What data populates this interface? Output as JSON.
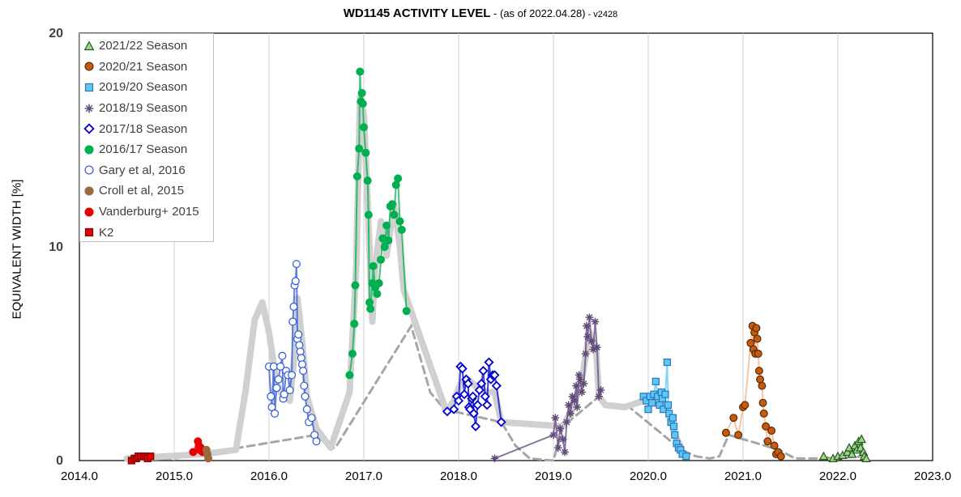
{
  "title": {
    "main": "WD1145 ACTIVITY LEVEL",
    "sub": " - (as of 2022.04.28)",
    "version": " - v2428"
  },
  "chart_data": {
    "type": "scatter",
    "ylabel": "EQUIVALENT WIDTH [%]",
    "xlabel": "",
    "xlim": [
      2014.0,
      2023.0
    ],
    "ylim": [
      0,
      20
    ],
    "xticks": [
      "2014.0",
      "2015.0",
      "2016.0",
      "2017.0",
      "2018.0",
      "2019.0",
      "2020.0",
      "2021.0",
      "2022.0",
      "2023.0"
    ],
    "yticks": [
      "0",
      "10",
      "20"
    ],
    "grid": "vertical",
    "legend_position": "top-left",
    "trend": {
      "solid": [
        [
          2014.5,
          0.1
        ],
        [
          2015.3,
          0.3
        ],
        [
          2015.65,
          0.5
        ],
        [
          2015.75,
          3.2
        ],
        [
          2015.85,
          6.6
        ],
        [
          2015.93,
          7.4
        ],
        [
          2016.0,
          6.0
        ],
        [
          2016.08,
          3.6
        ],
        [
          2016.15,
          3.0
        ],
        [
          2016.22,
          2.8
        ],
        [
          2016.27,
          5.0
        ],
        [
          2016.3,
          7.6
        ],
        [
          2016.35,
          5.6
        ],
        [
          2016.4,
          3.0
        ],
        [
          2016.5,
          1.5
        ],
        [
          2016.65,
          0.6
        ],
        [
          2016.85,
          3.2
        ],
        [
          2016.92,
          9.0
        ],
        [
          2016.96,
          17.0
        ],
        [
          2017.0,
          16.2
        ],
        [
          2017.06,
          10.0
        ],
        [
          2017.09,
          6.5
        ],
        [
          2017.12,
          9.0
        ],
        [
          2017.18,
          11.2
        ],
        [
          2017.24,
          9.6
        ],
        [
          2017.32,
          12.0
        ],
        [
          2017.38,
          10.0
        ],
        [
          2017.42,
          8.0
        ],
        [
          2017.87,
          2.3
        ],
        [
          2017.95,
          2.8
        ],
        [
          2018.02,
          3.6
        ],
        [
          2018.1,
          3.8
        ],
        [
          2018.2,
          3.4
        ],
        [
          2018.3,
          3.2
        ],
        [
          2018.38,
          3.2
        ],
        [
          2018.45,
          1.8
        ],
        [
          2019.1,
          1.6
        ],
        [
          2019.2,
          2.4
        ],
        [
          2019.3,
          3.8
        ],
        [
          2019.38,
          6.0
        ],
        [
          2019.45,
          5.2
        ],
        [
          2019.48,
          3.0
        ],
        [
          2019.55,
          2.6
        ],
        [
          2019.75,
          2.5
        ],
        [
          2019.95,
          2.8
        ],
        [
          2020.1,
          2.8
        ],
        [
          2020.2,
          2.5
        ],
        [
          2020.28,
          1.2
        ],
        [
          2020.35,
          0.6
        ]
      ],
      "dashed": [
        [
          2014.5,
          0.0
        ],
        [
          2015.0,
          0.1
        ],
        [
          2016.5,
          1.2
        ],
        [
          2016.65,
          0.6
        ],
        [
          2016.7,
          0.6
        ],
        [
          2017.5,
          6.3
        ],
        [
          2017.7,
          3.2
        ],
        [
          2017.85,
          2.4
        ],
        [
          2018.45,
          1.8
        ],
        [
          2018.6,
          0.7
        ],
        [
          2018.75,
          0.1
        ],
        [
          2019.0,
          0.0
        ],
        [
          2019.1,
          1.6
        ],
        [
          2019.48,
          3.0
        ],
        [
          2019.55,
          2.6
        ],
        [
          2019.8,
          2.5
        ],
        [
          2020.35,
          0.5
        ],
        [
          2020.5,
          0.2
        ],
        [
          2020.65,
          0.1
        ],
        [
          2020.75,
          0.2
        ],
        [
          2020.85,
          1.2
        ],
        [
          2021.38,
          0.5
        ],
        [
          2021.55,
          0.1
        ],
        [
          2021.85,
          0.1
        ],
        [
          2022.3,
          0.2
        ]
      ]
    },
    "series": [
      {
        "name": "2021/22 Season",
        "marker": "triangle",
        "color": "#a9d18e",
        "stroke": "#1f5c1f",
        "line_color": "#70ad47",
        "x": [
          2021.85,
          2021.95,
          2022.0,
          2022.05,
          2022.1,
          2022.12,
          2022.15,
          2022.18,
          2022.2,
          2022.22,
          2022.24,
          2022.25,
          2022.27,
          2022.28,
          2022.3
        ],
        "y": [
          0.2,
          0.1,
          0.2,
          0.25,
          0.4,
          0.6,
          0.3,
          0.7,
          0.5,
          0.9,
          0.6,
          1.0,
          0.4,
          0.2,
          0.1
        ]
      },
      {
        "name": "2020/21 Season",
        "marker": "circle",
        "color": "#c55a11",
        "stroke": "#5a2a00",
        "line_color": "#f4b183",
        "x": [
          2020.82,
          2020.9,
          2020.95,
          2021.0,
          2021.02,
          2021.08,
          2021.1,
          2021.11,
          2021.12,
          2021.13,
          2021.14,
          2021.15,
          2021.16,
          2021.17,
          2021.18,
          2021.2,
          2021.21,
          2021.22,
          2021.24,
          2021.26,
          2021.3,
          2021.33,
          2021.35,
          2021.37,
          2021.4
        ],
        "y": [
          1.3,
          2.0,
          1.2,
          2.5,
          2.6,
          5.5,
          6.3,
          5.2,
          6.0,
          5.0,
          6.2,
          5.7,
          5.0,
          4.2,
          3.8,
          3.5,
          2.7,
          2.2,
          1.6,
          0.9,
          1.4,
          0.7,
          0.3,
          0.4,
          0.2
        ]
      },
      {
        "name": "2019/20 Season",
        "marker": "square",
        "color": "#5ac8fa",
        "stroke": "#2e75b6",
        "line_color": "#5ac8fa",
        "x": [
          2019.95,
          2019.98,
          2020.0,
          2020.02,
          2020.04,
          2020.06,
          2020.08,
          2020.1,
          2020.12,
          2020.14,
          2020.15,
          2020.16,
          2020.18,
          2020.2,
          2020.21,
          2020.22,
          2020.24,
          2020.26,
          2020.27,
          2020.28,
          2020.3,
          2020.32,
          2020.34,
          2020.36,
          2020.4
        ],
        "y": [
          3.0,
          2.8,
          2.4,
          3.0,
          2.7,
          3.1,
          3.7,
          3.0,
          2.6,
          3.2,
          2.9,
          2.4,
          3.1,
          4.6,
          2.6,
          2.2,
          1.8,
          2.0,
          1.6,
          1.2,
          0.8,
          0.6,
          0.5,
          0.3,
          0.2
        ]
      },
      {
        "name": "2018/19 Season",
        "marker": "star",
        "color": "#604a7b",
        "stroke": "#604a7b",
        "line_color": "#604a7b",
        "x": [
          2018.38,
          2019.0,
          2019.02,
          2019.05,
          2019.07,
          2019.1,
          2019.12,
          2019.14,
          2019.16,
          2019.18,
          2019.2,
          2019.22,
          2019.24,
          2019.25,
          2019.27,
          2019.28,
          2019.3,
          2019.32,
          2019.34,
          2019.35,
          2019.36,
          2019.38,
          2019.4,
          2019.42,
          2019.44,
          2019.46,
          2019.48,
          2019.5
        ],
        "y": [
          0.1,
          1.2,
          2.0,
          0.6,
          1.5,
          1.0,
          0.4,
          1.8,
          2.6,
          2.2,
          3.0,
          2.8,
          3.5,
          2.5,
          4.0,
          3.8,
          3.2,
          3.6,
          5.0,
          6.3,
          5.8,
          6.7,
          5.6,
          5.2,
          6.5,
          5.3,
          3.0,
          3.3
        ]
      },
      {
        "name": "2017/18 Season",
        "marker": "diamond",
        "color": "#ffffff",
        "stroke": "#0000cc",
        "line_color": "#0000cc",
        "x": [
          2017.88,
          2017.95,
          2017.98,
          2018.0,
          2018.02,
          2018.04,
          2018.06,
          2018.08,
          2018.1,
          2018.11,
          2018.12,
          2018.14,
          2018.15,
          2018.16,
          2018.18,
          2018.2,
          2018.22,
          2018.24,
          2018.26,
          2018.28,
          2018.3,
          2018.32,
          2018.34,
          2018.36,
          2018.38,
          2018.4,
          2018.45
        ],
        "y": [
          2.3,
          2.4,
          3.0,
          2.8,
          4.4,
          4.3,
          3.1,
          3.8,
          3.6,
          2.5,
          2.4,
          2.9,
          3.0,
          2.2,
          1.6,
          2.6,
          3.3,
          3.6,
          4.2,
          3.0,
          2.6,
          4.6,
          3.8,
          4.0,
          4.0,
          3.5,
          1.8
        ]
      },
      {
        "name": "2016/17 Season",
        "marker": "circle",
        "color": "#00b050",
        "stroke": "#00b050",
        "line_color": "#00b050",
        "x": [
          2016.85,
          2016.88,
          2016.9,
          2016.91,
          2016.93,
          2016.95,
          2016.96,
          2016.97,
          2016.98,
          2016.99,
          2017.0,
          2017.02,
          2017.04,
          2017.05,
          2017.06,
          2017.07,
          2017.09,
          2017.1,
          2017.12,
          2017.14,
          2017.16,
          2017.18,
          2017.2,
          2017.22,
          2017.24,
          2017.26,
          2017.28,
          2017.3,
          2017.32,
          2017.34,
          2017.36,
          2017.38,
          2017.4,
          2017.45
        ],
        "y": [
          4.0,
          5.0,
          6.4,
          8.2,
          13.3,
          14.6,
          18.2,
          16.8,
          17.2,
          16.7,
          15.6,
          14.4,
          13.1,
          11.5,
          7.4,
          7.1,
          8.3,
          9.1,
          8.1,
          7.8,
          8.3,
          9.4,
          10.4,
          10.0,
          11.0,
          10.3,
          11.9,
          12.0,
          11.5,
          12.9,
          13.2,
          11.2,
          10.8,
          7.0
        ]
      },
      {
        "name": "Gary et al, 2016",
        "marker": "circle",
        "color": "#ffffff",
        "stroke": "#2e58d9",
        "line_color": "#2e58d9",
        "x": [
          2016.0,
          2016.02,
          2016.03,
          2016.05,
          2016.06,
          2016.08,
          2016.1,
          2016.12,
          2016.14,
          2016.15,
          2016.16,
          2016.18,
          2016.2,
          2016.22,
          2016.24,
          2016.25,
          2016.26,
          2016.27,
          2016.28,
          2016.29,
          2016.3,
          2016.31,
          2016.32,
          2016.33,
          2016.34,
          2016.35,
          2016.36,
          2016.37,
          2016.38,
          2016.4,
          2016.42,
          2016.45,
          2016.48,
          2016.5
        ],
        "y": [
          4.4,
          3.0,
          2.5,
          4.4,
          2.2,
          3.4,
          3.8,
          4.4,
          4.9,
          2.9,
          3.1,
          4.2,
          4.0,
          3.3,
          4.0,
          6.5,
          7.2,
          8.2,
          8.4,
          9.2,
          5.7,
          5.9,
          5.4,
          5.1,
          4.8,
          4.5,
          4.2,
          3.5,
          3.0,
          2.4,
          1.8,
          2.0,
          1.2,
          0.9
        ]
      },
      {
        "name": "Croll et al, 2015",
        "marker": "circle",
        "color": "#9c6a3a",
        "stroke": "#9c6a3a",
        "line_color": "#9c6a3a",
        "x": [
          2015.34,
          2015.35,
          2015.36
        ],
        "y": [
          0.5,
          0.3,
          0.1
        ]
      },
      {
        "name": "Vanderburg+ 2015",
        "marker": "circle",
        "color": "#e60000",
        "stroke": "#e60000",
        "line_color": "#e60000",
        "x": [
          2015.2,
          2015.25,
          2015.26,
          2015.27,
          2015.28,
          2015.3
        ],
        "y": [
          0.4,
          0.9,
          0.7,
          0.5,
          0.6,
          0.4
        ]
      },
      {
        "name": "K2",
        "marker": "square",
        "color": "#e60000",
        "stroke": "#7f0000",
        "line_color": "#e60000",
        "x": [
          2014.55,
          2014.58,
          2014.6,
          2014.62,
          2014.65,
          2014.68,
          2014.7,
          2014.72,
          2014.75
        ],
        "y": [
          0.0,
          0.1,
          0.1,
          0.2,
          0.2,
          0.2,
          0.2,
          0.1,
          0.2
        ]
      }
    ]
  }
}
